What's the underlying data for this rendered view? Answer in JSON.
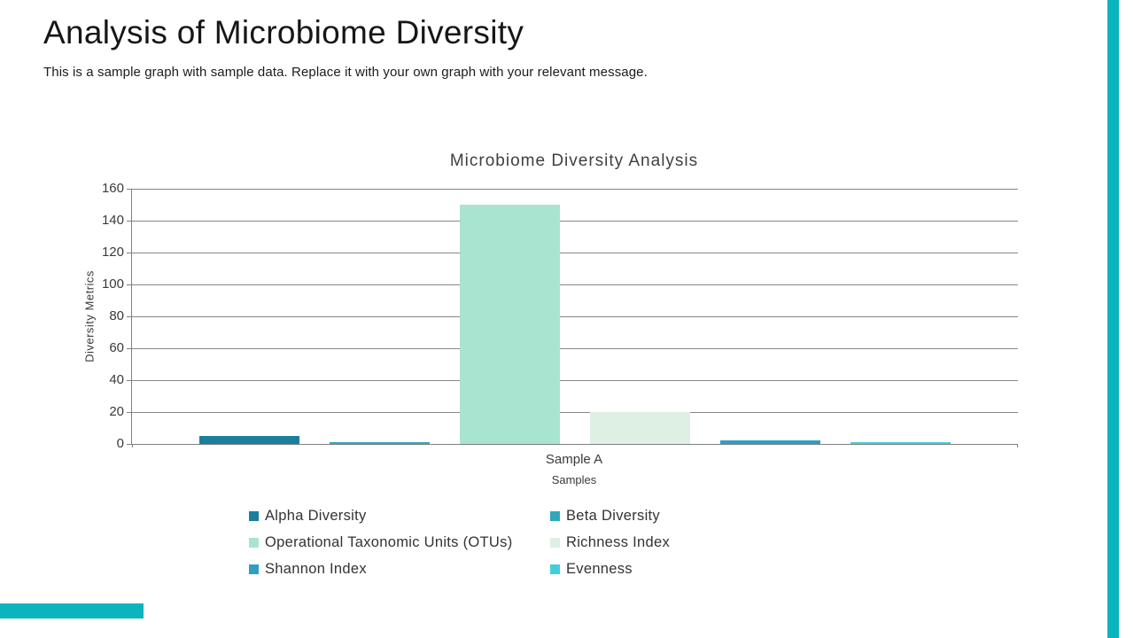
{
  "header": {
    "title": "Analysis of Microbiome Diversity",
    "subtitle": "This is a sample graph with sample data. Replace it with your own graph with your relevant message."
  },
  "accent_color": "#0CB5BE",
  "chart_data": {
    "type": "bar",
    "title": "Microbiome Diversity Analysis",
    "categories": [
      "Sample A"
    ],
    "xlabel": "Samples",
    "ylabel": "Diversity Metrics",
    "ylim": [
      0,
      160
    ],
    "yticks": [
      0,
      20,
      40,
      60,
      80,
      100,
      120,
      140,
      160
    ],
    "grid": true,
    "legend_position": "bottom",
    "series": [
      {
        "name": "Alpha Diversity",
        "values": [
          5
        ],
        "color": "#1B7E9D"
      },
      {
        "name": "Beta Diversity",
        "values": [
          1
        ],
        "color": "#2FA8BE"
      },
      {
        "name": "Operational Taxonomic Units (OTUs)",
        "values": [
          150
        ],
        "color": "#A9E4D1"
      },
      {
        "name": "Richness Index",
        "values": [
          20
        ],
        "color": "#DEF0E4"
      },
      {
        "name": "Shannon Index",
        "values": [
          2
        ],
        "color": "#2E9EC5"
      },
      {
        "name": "Evenness",
        "values": [
          1
        ],
        "color": "#3FCFDA"
      }
    ]
  }
}
